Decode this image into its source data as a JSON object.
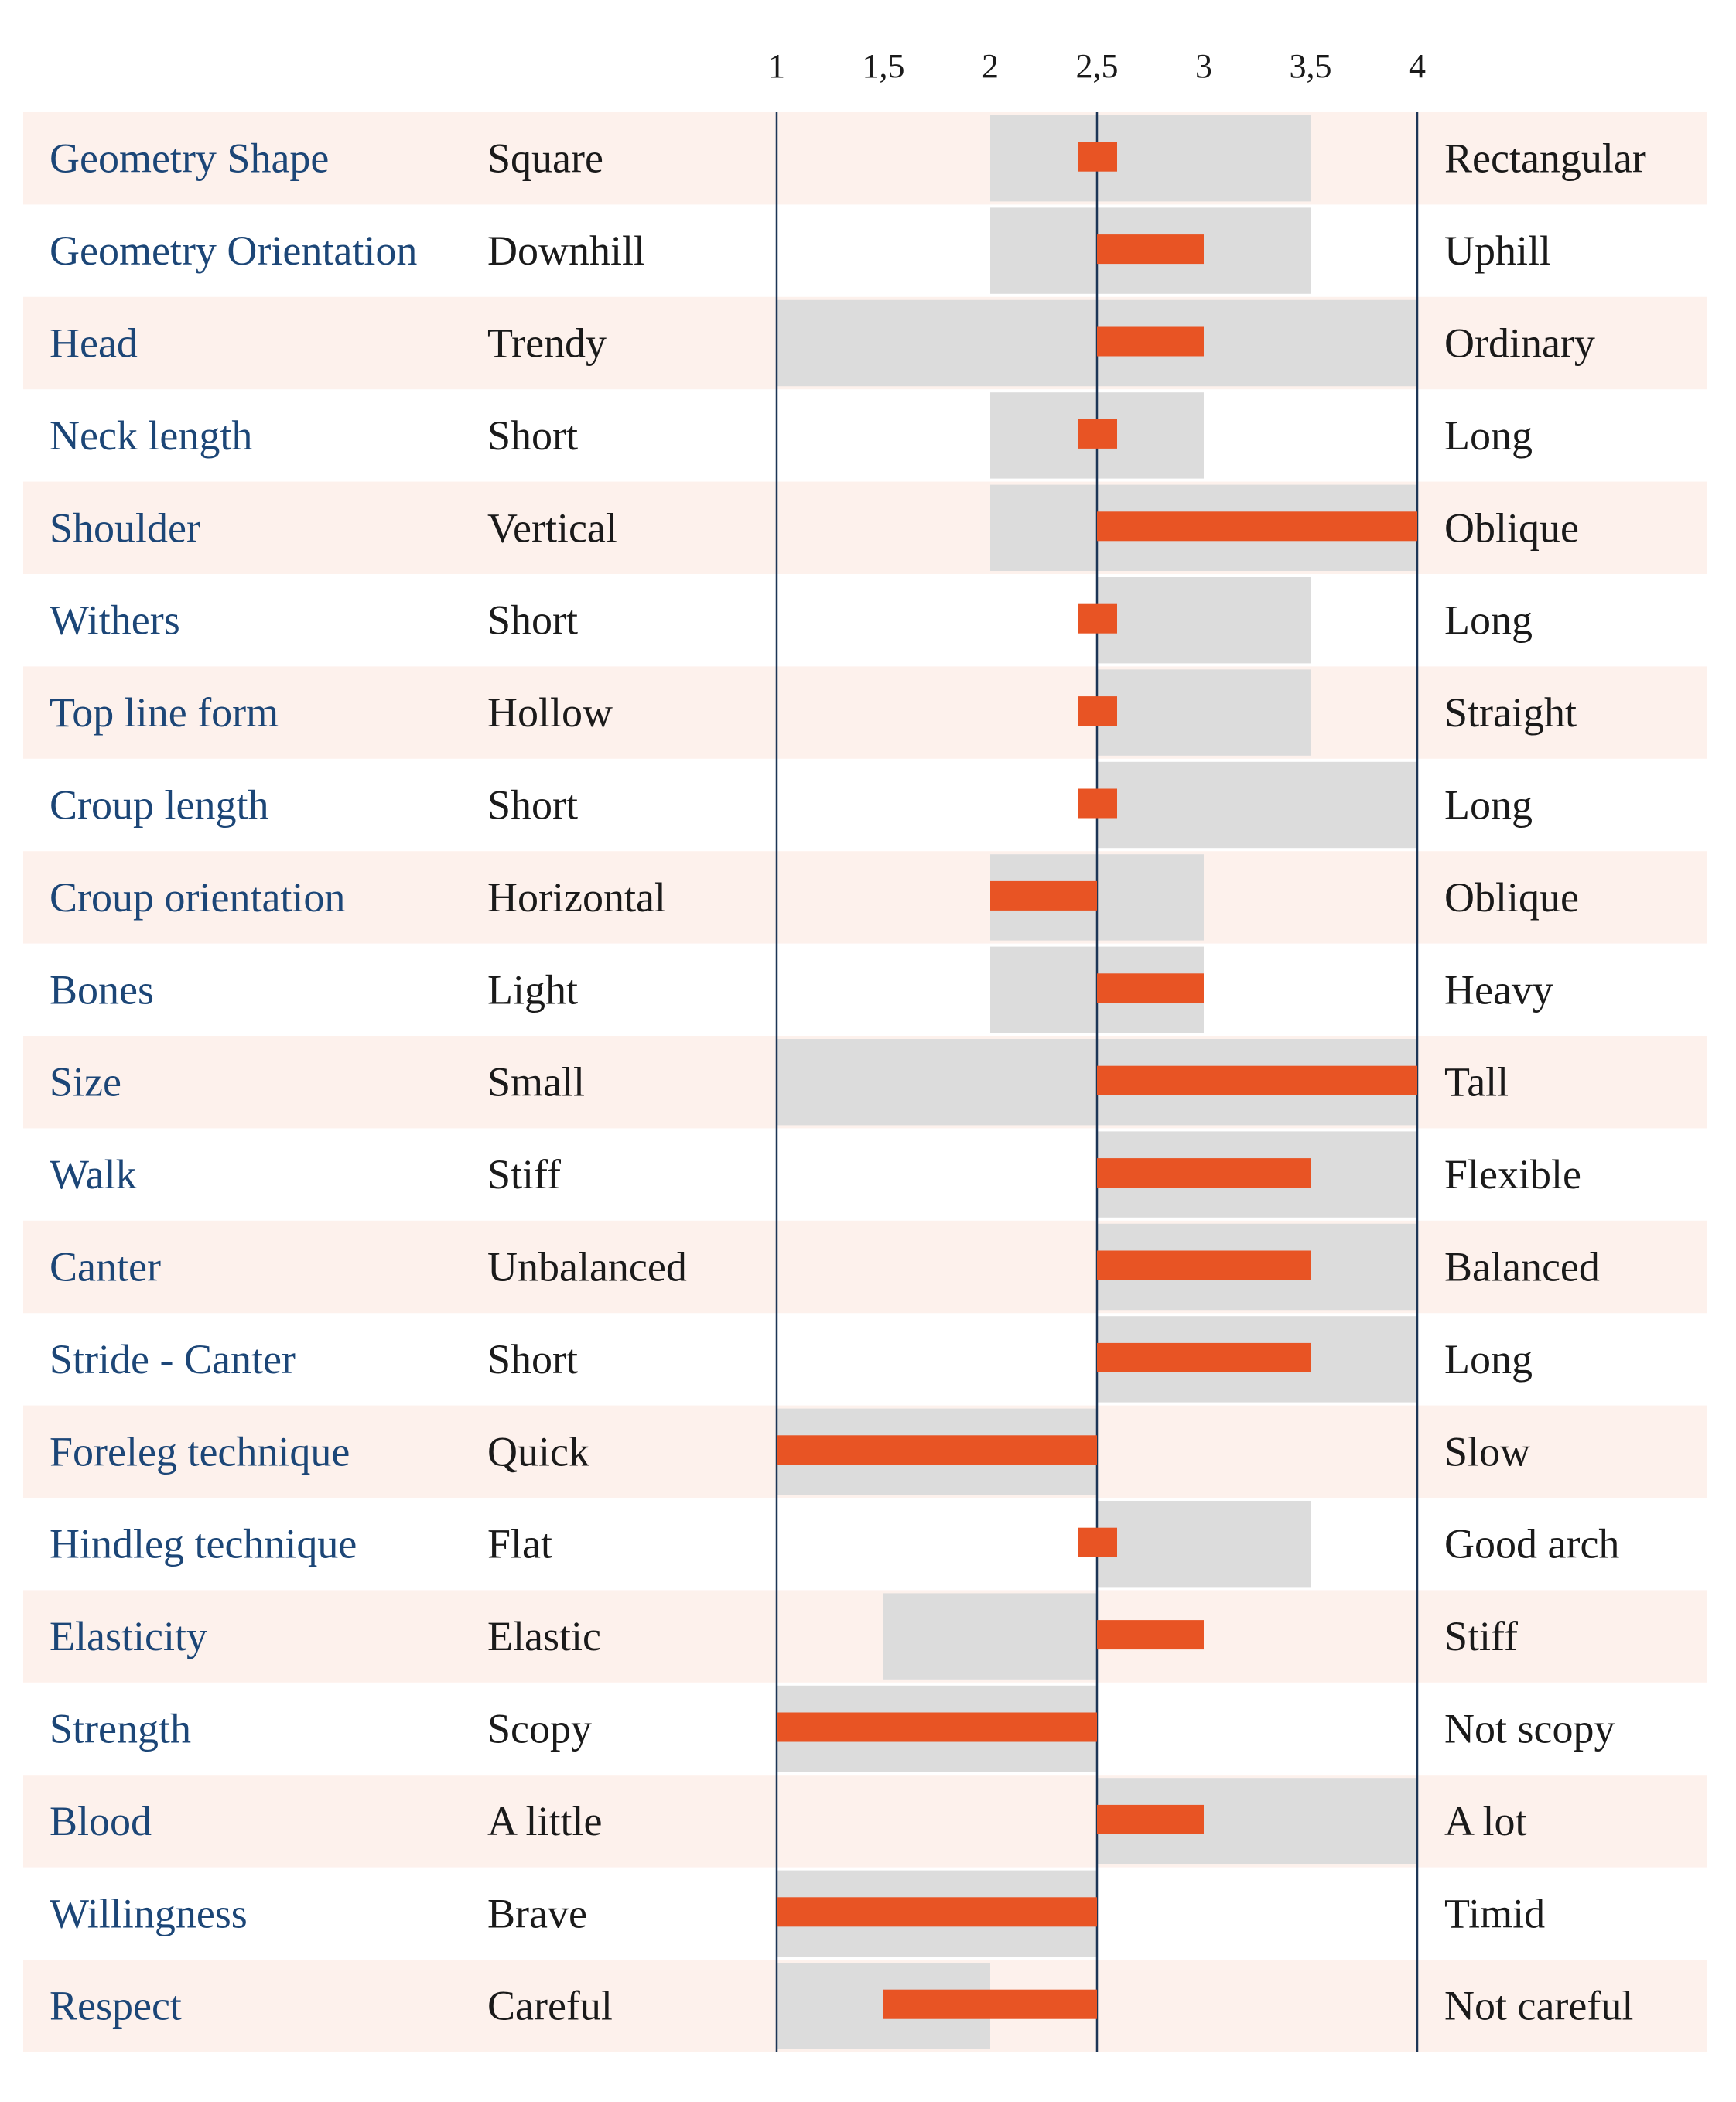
{
  "colors": {
    "row_stripe": "#fdf1ec",
    "range_bar": "#dcdcdc",
    "value_bar": "#e85424",
    "trait_text": "#1c4677",
    "axis_line": "#1c3556"
  },
  "chart_data": {
    "type": "bar",
    "orientation": "horizontal",
    "subtype": "linear-profile",
    "xlim": [
      1,
      4
    ],
    "center": 2.5,
    "ticks": [
      "1",
      "1,5",
      "2",
      "2,5",
      "3",
      "3,5",
      "4"
    ],
    "tick_values": [
      1,
      1.5,
      2,
      2.5,
      3,
      3.5,
      4
    ],
    "grid": false,
    "series": [
      {
        "name": "",
        "role": "range"
      },
      {
        "name": "",
        "role": "value"
      }
    ],
    "rows": [
      {
        "trait": "Geometry Shape",
        "low": "Square",
        "high": "Rectangular",
        "range": [
          2,
          3.5
        ],
        "value": 2.5
      },
      {
        "trait": "Geometry Orientation",
        "low": "Downhill",
        "high": "Uphill",
        "range": [
          2,
          3.5
        ],
        "value": 3
      },
      {
        "trait": "Head",
        "low": "Trendy",
        "high": "Ordinary",
        "range": [
          1,
          4
        ],
        "value": 3
      },
      {
        "trait": "Neck length",
        "low": "Short",
        "high": "Long",
        "range": [
          2,
          3
        ],
        "value": 2.5
      },
      {
        "trait": "Shoulder",
        "low": "Vertical",
        "high": "Oblique",
        "range": [
          2,
          4
        ],
        "value": 4
      },
      {
        "trait": "Withers",
        "low": "Short",
        "high": "Long",
        "range": [
          2.5,
          3.5
        ],
        "value": 2.5
      },
      {
        "trait": "Top line form",
        "low": "Hollow",
        "high": "Straight",
        "range": [
          2.5,
          3.5
        ],
        "value": 2.5
      },
      {
        "trait": "Croup length",
        "low": "Short",
        "high": "Long",
        "range": [
          2.5,
          4
        ],
        "value": 2.5
      },
      {
        "trait": "Croup orientation",
        "low": "Horizontal",
        "high": "Oblique",
        "range": [
          2,
          3
        ],
        "value": 2
      },
      {
        "trait": "Bones",
        "low": "Light",
        "high": "Heavy",
        "range": [
          2,
          3
        ],
        "value": 3
      },
      {
        "trait": "Size",
        "low": "Small",
        "high": "Tall",
        "range": [
          1,
          4
        ],
        "value": 4
      },
      {
        "trait": "Walk",
        "low": "Stiff",
        "high": "Flexible",
        "range": [
          2.5,
          4
        ],
        "value": 3.5
      },
      {
        "trait": "Canter",
        "low": "Unbalanced",
        "high": "Balanced",
        "range": [
          2.5,
          4
        ],
        "value": 3.5
      },
      {
        "trait": "Stride - Canter",
        "low": "Short",
        "high": "Long",
        "range": [
          2.5,
          4
        ],
        "value": 3.5
      },
      {
        "trait": "Foreleg technique",
        "low": "Quick",
        "high": "Slow",
        "range": [
          1,
          2.5
        ],
        "value": 1
      },
      {
        "trait": "Hindleg technique",
        "low": "Flat",
        "high": "Good arch",
        "range": [
          2.5,
          3.5
        ],
        "value": 2.5
      },
      {
        "trait": "Elasticity",
        "low": "Elastic",
        "high": "Stiff",
        "range": [
          1.5,
          2.5
        ],
        "value": 3
      },
      {
        "trait": "Strength",
        "low": "Scopy",
        "high": "Not scopy",
        "range": [
          1,
          2.5
        ],
        "value": 1
      },
      {
        "trait": "Blood",
        "low": "A little",
        "high": "A lot",
        "range": [
          2.5,
          4
        ],
        "value": 3
      },
      {
        "trait": "Willingness",
        "low": "Brave",
        "high": "Timid",
        "range": [
          1,
          2.5
        ],
        "value": 1
      },
      {
        "trait": "Respect",
        "low": "Careful",
        "high": "Not careful",
        "range": [
          1,
          2
        ],
        "value": 1.5
      }
    ]
  }
}
